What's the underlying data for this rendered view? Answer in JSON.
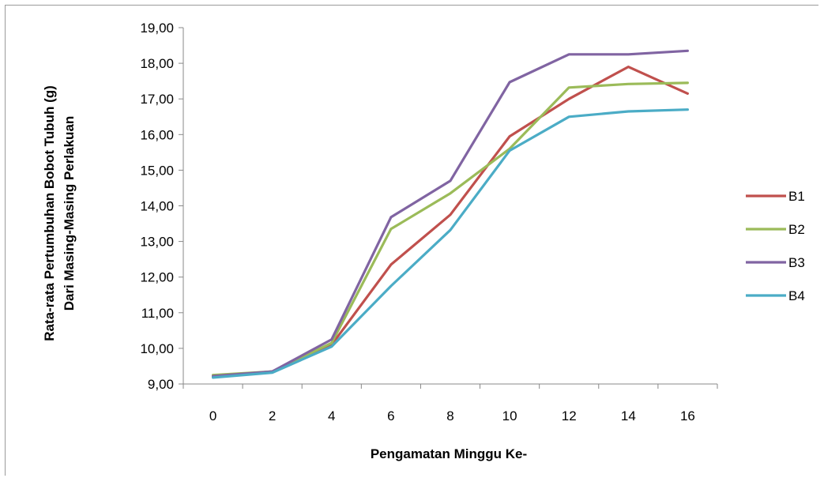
{
  "chart_data": {
    "type": "line",
    "ylabel_lines": [
      "Rata-rata Pertumbuhan Bobot Tubuh (g)",
      "Dari Masing-Masing Perlakuan"
    ],
    "xlabel": "Pengamatan Minggu Ke-",
    "x": [
      "0",
      "2",
      "4",
      "6",
      "8",
      "10",
      "12",
      "14",
      "16"
    ],
    "y_ticks": [
      "9,00",
      "10,00",
      "11,00",
      "12,00",
      "13,00",
      "14,00",
      "15,00",
      "16,00",
      "17,00",
      "18,00",
      "19,00"
    ],
    "ylim": [
      9,
      19
    ],
    "grid": false,
    "legend_position": "right",
    "series": [
      {
        "name": "B1",
        "color": "#c0504d",
        "values": [
          9.2,
          9.35,
          10.1,
          12.35,
          13.75,
          15.95,
          17.0,
          17.9,
          17.15
        ]
      },
      {
        "name": "B2",
        "color": "#9bbb59",
        "values": [
          9.25,
          9.35,
          10.15,
          13.35,
          14.35,
          15.6,
          17.32,
          17.42,
          17.45
        ]
      },
      {
        "name": "B3",
        "color": "#8064a2",
        "values": [
          9.22,
          9.35,
          10.25,
          13.68,
          14.7,
          17.47,
          18.25,
          18.25,
          18.35
        ]
      },
      {
        "name": "B4",
        "color": "#4bacc6",
        "values": [
          9.18,
          9.32,
          10.05,
          11.75,
          13.32,
          15.55,
          16.5,
          16.65,
          16.7
        ]
      }
    ]
  }
}
